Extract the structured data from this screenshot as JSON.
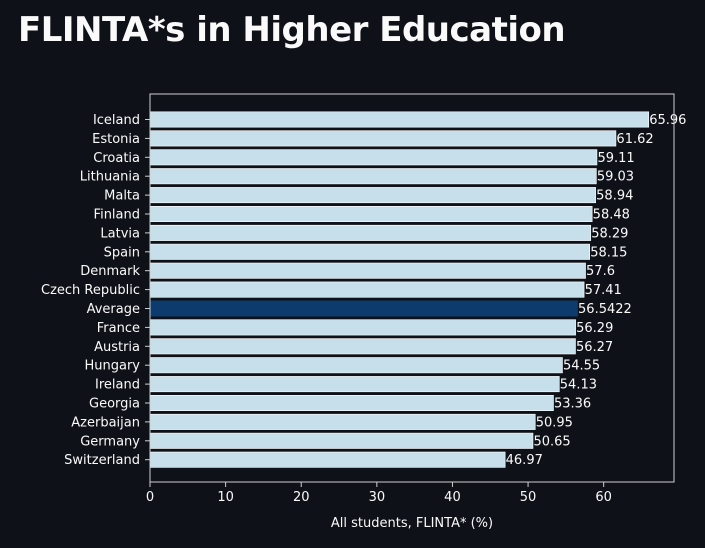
{
  "page": {
    "title": "FLINTA*s in Higher Education"
  },
  "chart_data": {
    "type": "bar",
    "orientation": "horizontal",
    "categories": [
      "Iceland",
      "Estonia",
      "Croatia",
      "Lithuania",
      "Malta",
      "Finland",
      "Latvia",
      "Spain",
      "Denmark",
      "Czech Republic",
      "Average",
      "France",
      "Austria",
      "Hungary",
      "Ireland",
      "Georgia",
      "Azerbaijan",
      "Germany",
      "Switzerland"
    ],
    "values": [
      65.96,
      61.62,
      59.11,
      59.03,
      58.94,
      58.48,
      58.29,
      58.15,
      57.6,
      57.41,
      56.5422,
      56.29,
      56.27,
      54.55,
      54.13,
      53.36,
      50.95,
      50.65,
      46.97
    ],
    "value_labels": [
      "65.96",
      "61.62",
      "59.11",
      "59.03",
      "58.94",
      "58.48",
      "58.29",
      "58.15",
      "57.6",
      "57.41",
      "56.5422",
      "56.29",
      "56.27",
      "54.55",
      "54.13",
      "53.36",
      "50.95",
      "50.65",
      "46.97"
    ],
    "highlight_category": "Average",
    "xlabel": "All students, FLINTA* (%)",
    "ylabel": "",
    "xlim": [
      0,
      69.3
    ],
    "xticks": [
      0,
      10,
      20,
      30,
      40,
      50,
      60
    ],
    "grid": false,
    "colors": {
      "bar": "#c6dfeb",
      "highlight": "#0d3b6e",
      "background": "#0e1117",
      "axis": "#d0d0d0",
      "text": "#fafafa"
    }
  }
}
